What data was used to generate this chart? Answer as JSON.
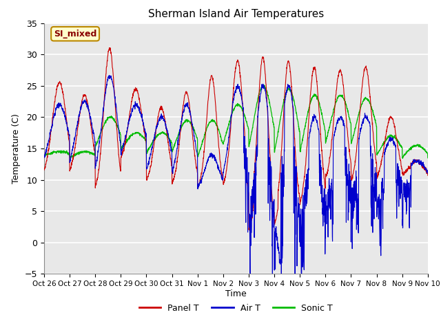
{
  "title": "Sherman Island Air Temperatures",
  "xlabel": "Time",
  "ylabel": "Temperature (C)",
  "ylim": [
    -5,
    35
  ],
  "yticks": [
    -5,
    0,
    5,
    10,
    15,
    20,
    25,
    30,
    35
  ],
  "xtick_labels": [
    "Oct 26",
    "Oct 27",
    "Oct 28",
    "Oct 29",
    "Oct 30",
    "Oct 31",
    "Nov 1",
    "Nov 2",
    "Nov 3",
    "Nov 4",
    "Nov 5",
    "Nov 6",
    "Nov 7",
    "Nov 8",
    "Nov 9",
    "Nov 10"
  ],
  "panel_color": "#cc0000",
  "air_color": "#0000cc",
  "sonic_color": "#00bb00",
  "bg_color": "#e8e8e8",
  "legend_label": "SI_mixed",
  "legend_bg": "#ffffcc",
  "legend_border": "#bb8800",
  "legend_text_color": "#880000",
  "n_days": 15,
  "pts_per_day": 144
}
